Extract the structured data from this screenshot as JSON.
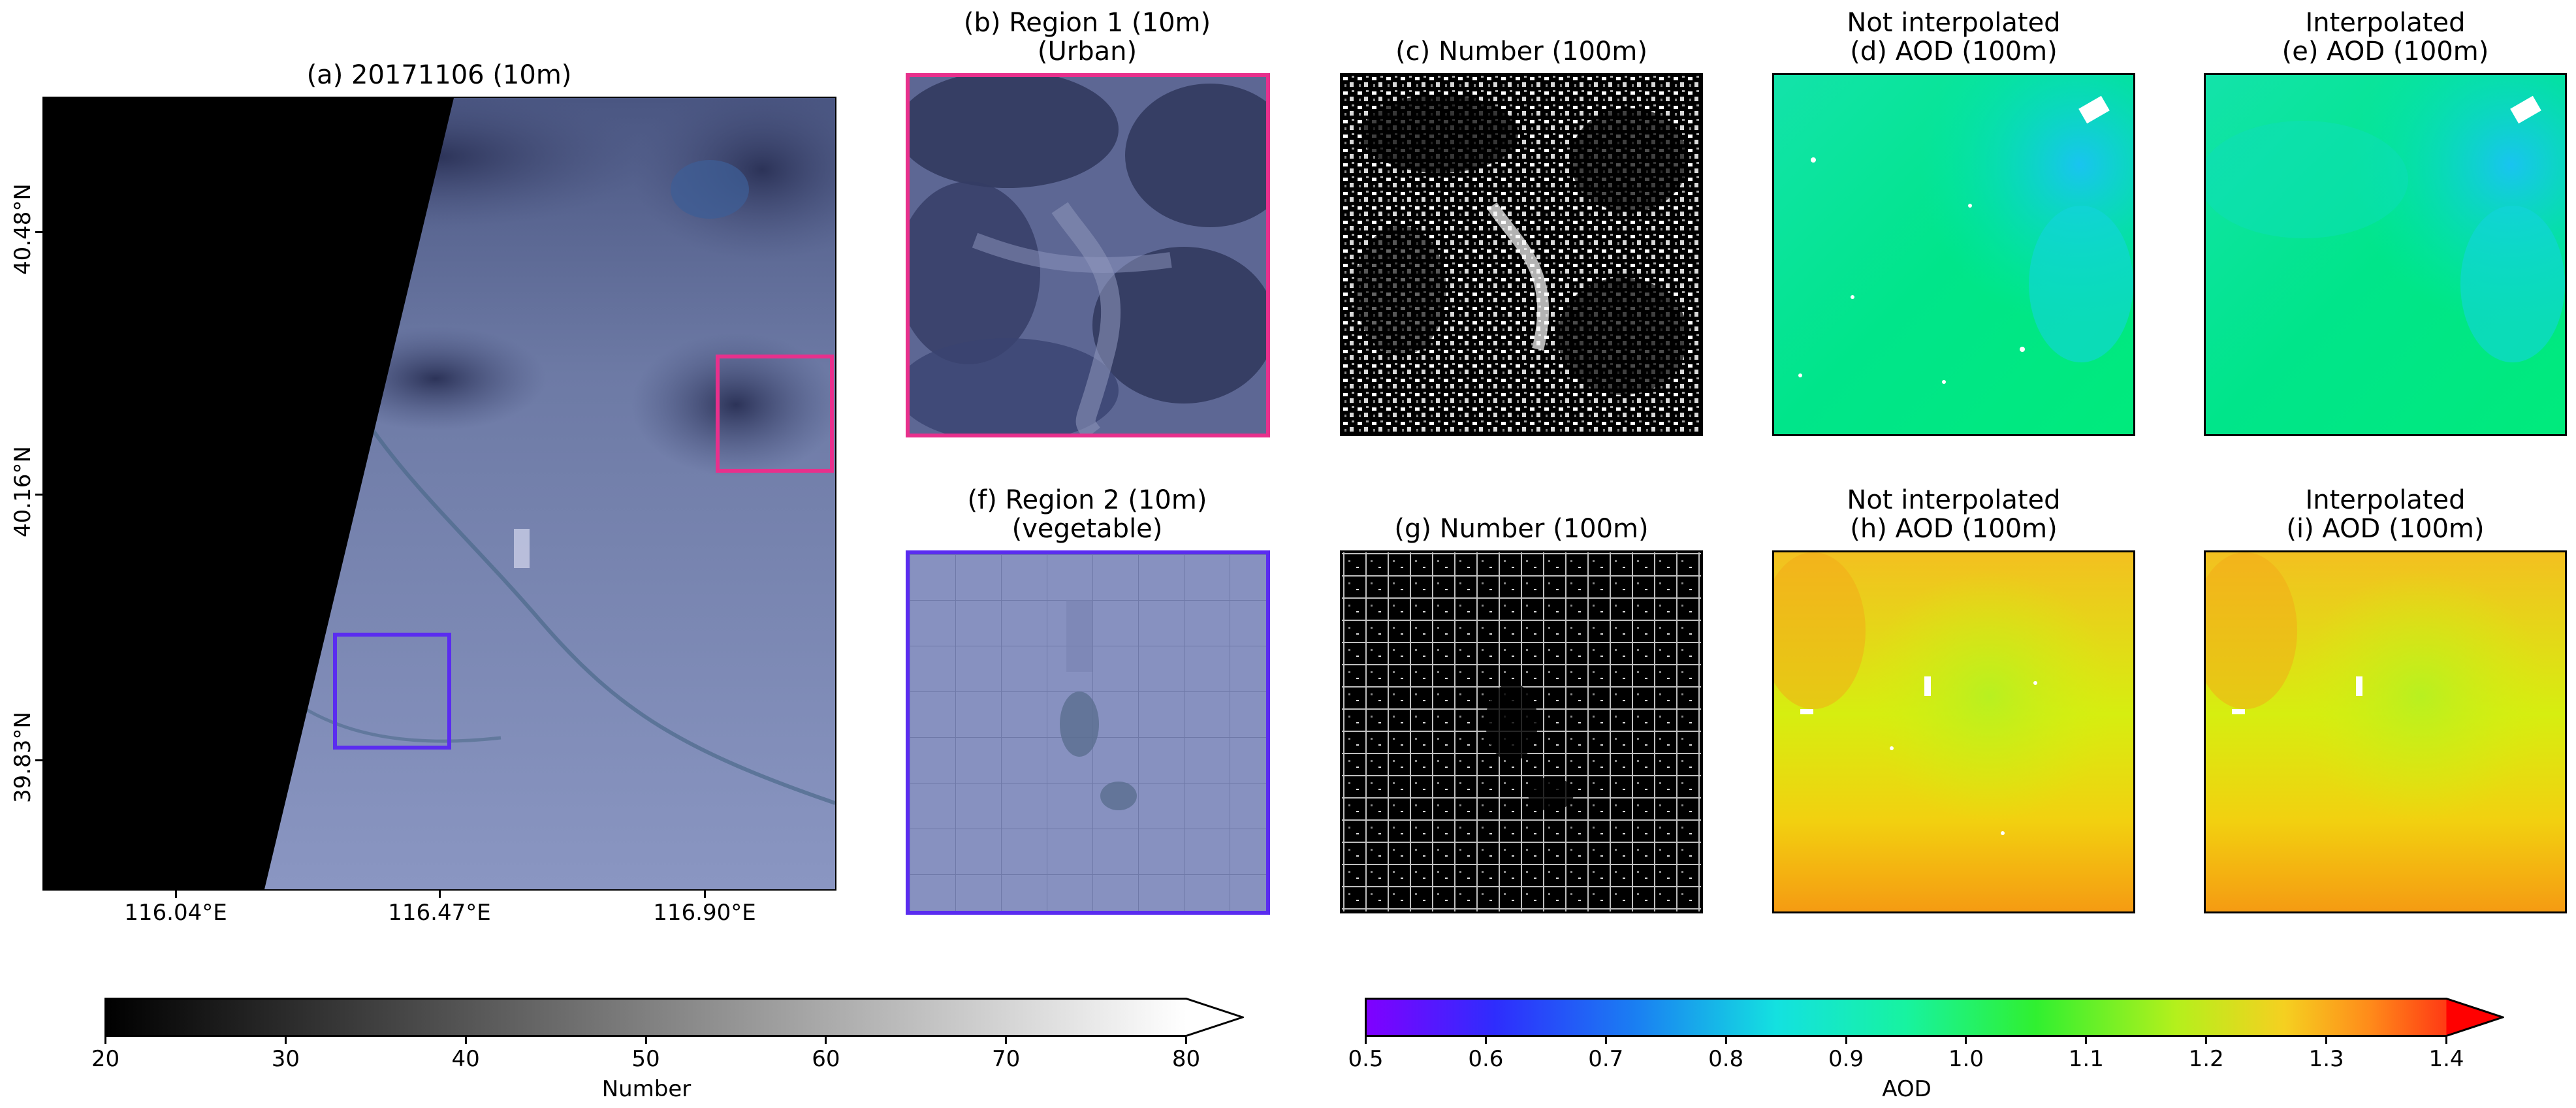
{
  "panels": {
    "a": {
      "title": "(a) 20171106 (10m)",
      "x_ticks": [
        "116.04°E",
        "116.47°E",
        "116.90°E"
      ],
      "y_ticks": [
        "40.48°N",
        "40.16°N",
        "39.83°N"
      ]
    },
    "b": {
      "title_line1": "(b) Region 1 (10m)",
      "title_line2": "(Urban)"
    },
    "c": {
      "title": "(c) Number (100m)"
    },
    "d": {
      "title_line1": "Not interpolated",
      "title_line2": "(d) AOD (100m)"
    },
    "e": {
      "title_line1": "Interpolated",
      "title_line2": "(e) AOD (100m)"
    },
    "f": {
      "title_line1": "(f) Region 2 (10m)",
      "title_line2": "(vegetable)"
    },
    "g": {
      "title": "(g) Number (100m)"
    },
    "h": {
      "title_line1": "Not interpolated",
      "title_line2": "(h) AOD (100m)"
    },
    "i": {
      "title_line1": "Interpolated",
      "title_line2": "(i) AOD (100m)"
    }
  },
  "colorbars": {
    "number": {
      "label": "Number",
      "ticks": [
        "20",
        "30",
        "40",
        "50",
        "60",
        "70",
        "80"
      ],
      "min": 20,
      "max": 80,
      "extend": "max"
    },
    "aod": {
      "label": "AOD",
      "ticks": [
        "0.5",
        "0.6",
        "0.7",
        "0.8",
        "0.9",
        "1.0",
        "1.1",
        "1.2",
        "1.3",
        "1.4"
      ],
      "min": 0.5,
      "max": 1.4,
      "extend": "max"
    }
  },
  "colors": {
    "region1_box": "#e8308c",
    "region2_box": "#5a2cf0"
  }
}
